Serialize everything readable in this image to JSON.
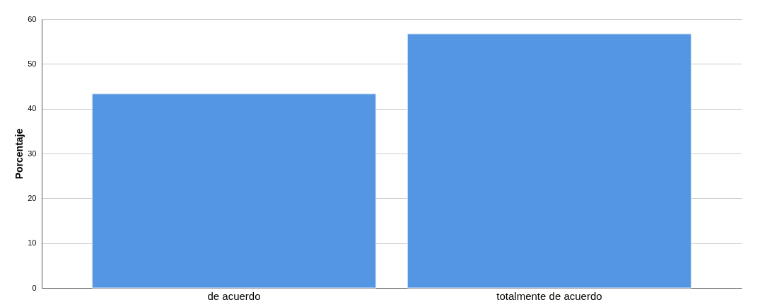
{
  "chart_data": {
    "type": "bar",
    "ylabel": "Porcentaje",
    "categories": [
      "de acuerdo",
      "totalmente de acuerdo"
    ],
    "values": [
      43.3,
      56.7
    ],
    "color": "#5596e3",
    "ylim": [
      0,
      60
    ],
    "yticks": [
      0,
      10,
      20,
      30,
      40,
      50,
      60
    ],
    "grid": "y"
  }
}
